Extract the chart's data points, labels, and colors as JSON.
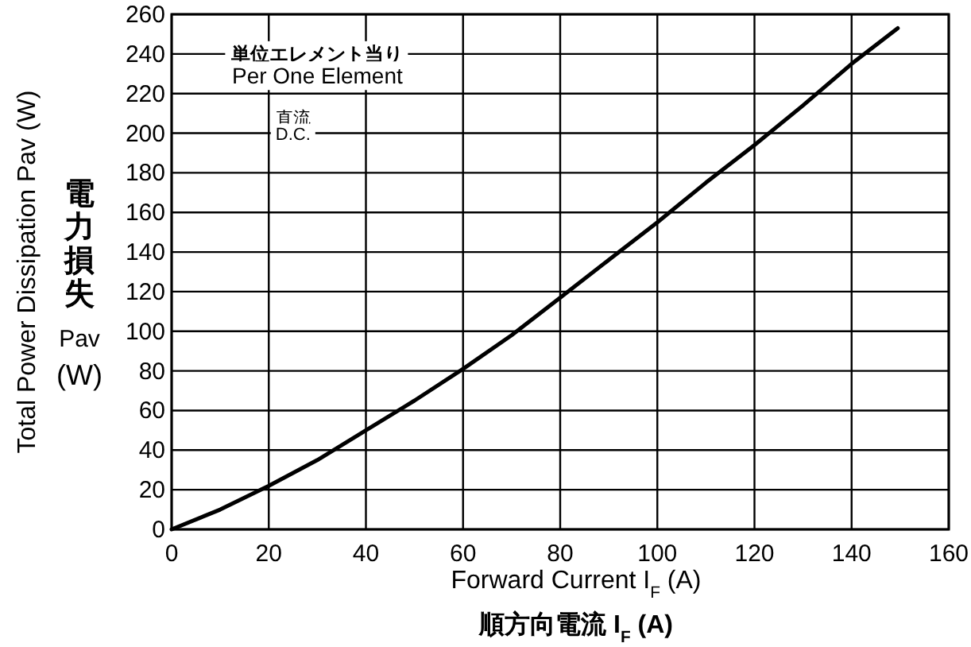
{
  "chart_data": {
    "type": "line",
    "xlabel": "Forward Current I$_{F}$ (A)",
    "ylabel": "Total Power Dissipation Pav (W)",
    "x": [
      0,
      10,
      20,
      30,
      40,
      50,
      60,
      70,
      80,
      90,
      100,
      110,
      120,
      130,
      140,
      149.5
    ],
    "series": [
      {
        "color": "#000000",
        "values": [
          0,
          10,
          22,
          35,
          50,
          65,
          81,
          98,
          117,
          136,
          155,
          175,
          194,
          214,
          235,
          253
        ]
      }
    ],
    "xlim": [
      0,
      160
    ],
    "xticks": [
      0,
      20,
      40,
      60,
      80,
      100,
      120,
      140,
      160
    ],
    "ylim": [
      0,
      260
    ],
    "yticks": [
      0,
      20,
      40,
      60,
      80,
      100,
      120,
      140,
      160,
      180,
      200,
      220,
      240,
      260
    ],
    "grid": true,
    "marker": "none",
    "line_style": "solid",
    "annotations": [
      "単位エレメント当り",
      "Per One Element",
      "直流",
      "D.C.",
      "順方向電流 I$_{F}$ (A)",
      "電力損失 Pav (W)"
    ]
  }
}
